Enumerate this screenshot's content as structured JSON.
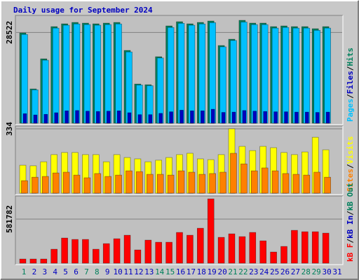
{
  "chart_data": [
    {
      "type": "bar",
      "title": "Daily usage for September 2024",
      "series": [
        {
          "name": "Hits",
          "color": "#00805c",
          "values": [
            28380,
            10780,
            20240,
            30360,
            31240,
            31680,
            31460,
            31240,
            31460,
            31680,
            22880,
            12320,
            12100,
            20900,
            30580,
            31900,
            31240,
            31680,
            32120,
            24420,
            26400,
            32340,
            31460,
            31460,
            30360,
            30580,
            30360,
            30360,
            29700,
            30360,
            null
          ]
        },
        {
          "name": "Files",
          "color": "#0000c0",
          "values": [
            3000,
            2600,
            2800,
            3300,
            3900,
            4000,
            3800,
            3700,
            3800,
            3900,
            3300,
            2700,
            2700,
            3100,
            3600,
            4100,
            3900,
            3900,
            4400,
            3400,
            3500,
            4000,
            3800,
            3700,
            3600,
            3600,
            3500,
            3500,
            3400,
            3500,
            null
          ]
        },
        {
          "name": "Pages",
          "color": "#00c0ff",
          "values": [
            27900,
            10500,
            19800,
            29900,
            30800,
            31200,
            31000,
            30800,
            31000,
            31200,
            22400,
            12000,
            11800,
            20500,
            30100,
            31400,
            30800,
            31200,
            31600,
            24000,
            26000,
            31800,
            31000,
            31000,
            29900,
            30100,
            29900,
            29900,
            29200,
            29900,
            null
          ]
        }
      ],
      "ylim": [
        0,
        33000
      ],
      "yticks": [
        28522
      ],
      "legend_separator": "/"
    },
    {
      "type": "bar",
      "series": [
        {
          "name": "Visits",
          "color": "#ffff00",
          "values": [
            145,
            142,
            163,
            200,
            211,
            211,
            200,
            200,
            163,
            200,
            185,
            178,
            163,
            171,
            185,
            200,
            207,
            178,
            174,
            200,
            334,
            243,
            221,
            243,
            236,
            211,
            200,
            214,
            290,
            225,
            null
          ]
        },
        {
          "name": "Sites",
          "color": "#ff8000",
          "values": [
            65,
            83,
            87,
            105,
            109,
            94,
            80,
            102,
            87,
            94,
            116,
            112,
            98,
            98,
            94,
            116,
            109,
            98,
            102,
            109,
            207,
            152,
            116,
            131,
            116,
            102,
            98,
            94,
            109,
            83,
            null
          ]
        }
      ],
      "ylim": [
        0,
        334
      ],
      "yticks": [
        334
      ],
      "legend_separator": "/"
    },
    {
      "type": "bar",
      "categories": [
        "1",
        "2",
        "3",
        "4",
        "5",
        "6",
        "7",
        "8",
        "9",
        "10",
        "11",
        "12",
        "13",
        "14",
        "15",
        "16",
        "17",
        "18",
        "19",
        "20",
        "21",
        "22",
        "23",
        "24",
        "25",
        "26",
        "27",
        "28",
        "29",
        "30",
        "31"
      ],
      "category_colors": [
        "#00805c",
        "#0000c0",
        "#0000c0",
        "#0000c0",
        "#0000c0",
        "#0000c0",
        "#00805c",
        "#00805c",
        "#0000c0",
        "#0000c0",
        "#0000c0",
        "#0000c0",
        "#0000c0",
        "#00805c",
        "#00805c",
        "#0000c0",
        "#0000c0",
        "#0000c0",
        "#0000c0",
        "#0000c0",
        "#00805c",
        "#00805c",
        "#0000c0",
        "#0000c0",
        "#0000c0",
        "#0000c0",
        "#0000c0",
        "#00805c",
        "#00805c",
        "#0000c0",
        "#0000c0"
      ],
      "series": [
        {
          "name": "kB Out",
          "color": "#00805c",
          "values": [
            null,
            null,
            null,
            null,
            null,
            null,
            null,
            null,
            null,
            null,
            null,
            null,
            null,
            null,
            null,
            null,
            null,
            null,
            null,
            null,
            null,
            null,
            null,
            null,
            null,
            null,
            null,
            null,
            null,
            null,
            null
          ]
        },
        {
          "name": "kB In",
          "color": "#0000c0",
          "values": [
            null,
            null,
            null,
            null,
            null,
            null,
            null,
            null,
            null,
            null,
            null,
            null,
            null,
            null,
            null,
            null,
            null,
            null,
            null,
            null,
            null,
            null,
            null,
            null,
            null,
            null,
            null,
            null,
            null,
            null,
            null
          ]
        },
        {
          "name": "kB F",
          "color": "#ff0000",
          "values": [
            55404,
            55404,
            55404,
            184680,
            332424,
            313956,
            313956,
            184680,
            258552,
            323190,
            369360,
            175446,
            304722,
            277020,
            277020,
            406296,
            369360,
            461700,
            849528,
            341658,
            387828,
            350892,
            406296,
            295488,
            147744,
            221616,
            433998,
            415530,
            415530,
            397062,
            null
          ]
        }
      ],
      "ylim": [
        0,
        850000
      ],
      "yticks": [
        581782
      ],
      "legend_separator": "/"
    }
  ]
}
